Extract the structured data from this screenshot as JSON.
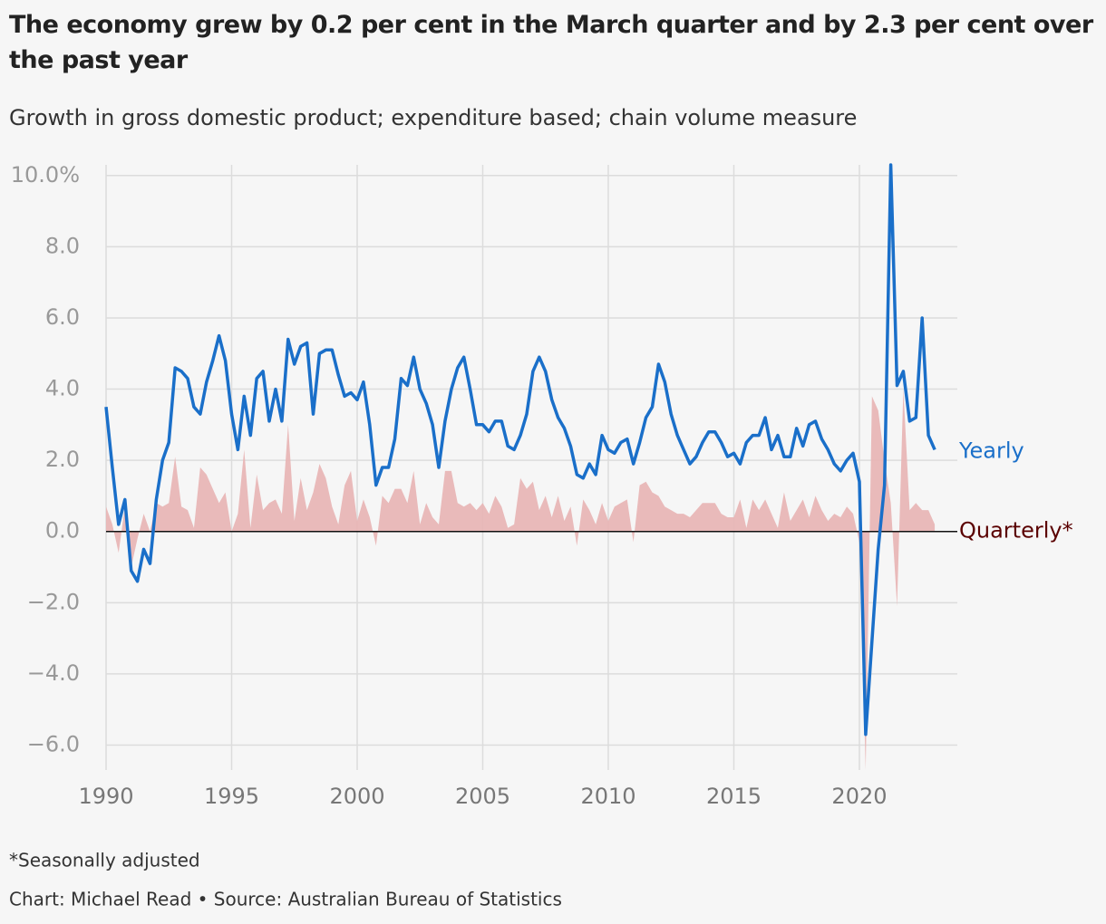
{
  "chart_data": {
    "type": "line-area",
    "title": "The economy grew by 0.2 per cent in the March quarter and by 2.3 per cent over the past year",
    "subtitle": "Growth in gross domestic product; expenditure based; chain volume measure",
    "footnote": "*Seasonally adjusted",
    "source": "Chart: Michael Read • Source: Australian Bureau of Statistics",
    "x": [
      1990,
      1990.25,
      1990.5,
      1990.75,
      1991,
      1991.25,
      1991.5,
      1991.75,
      1992,
      1992.25,
      1992.5,
      1992.75,
      1993,
      1993.25,
      1993.5,
      1993.75,
      1994,
      1994.25,
      1994.5,
      1994.75,
      1995,
      1995.25,
      1995.5,
      1995.75,
      1996,
      1996.25,
      1996.5,
      1996.75,
      1997,
      1997.25,
      1997.5,
      1997.75,
      1998,
      1998.25,
      1998.5,
      1998.75,
      1999,
      1999.25,
      1999.5,
      1999.75,
      2000,
      2000.25,
      2000.5,
      2000.75,
      2001,
      2001.25,
      2001.5,
      2001.75,
      2002,
      2002.25,
      2002.5,
      2002.75,
      2003,
      2003.25,
      2003.5,
      2003.75,
      2004,
      2004.25,
      2004.5,
      2004.75,
      2005,
      2005.25,
      2005.5,
      2005.75,
      2006,
      2006.25,
      2006.5,
      2006.75,
      2007,
      2007.25,
      2007.5,
      2007.75,
      2008,
      2008.25,
      2008.5,
      2008.75,
      2009,
      2009.25,
      2009.5,
      2009.75,
      2010,
      2010.25,
      2010.5,
      2010.75,
      2011,
      2011.25,
      2011.5,
      2011.75,
      2012,
      2012.25,
      2012.5,
      2012.75,
      2013,
      2013.25,
      2013.5,
      2013.75,
      2014,
      2014.25,
      2014.5,
      2014.75,
      2015,
      2015.25,
      2015.5,
      2015.75,
      2016,
      2016.25,
      2016.5,
      2016.75,
      2017,
      2017.25,
      2017.5,
      2017.75,
      2018,
      2018.25,
      2018.5,
      2018.75,
      2019,
      2019.25,
      2019.5,
      2019.75,
      2020,
      2020.25,
      2020.5,
      2020.75,
      2021,
      2021.25,
      2021.5,
      2021.75,
      2022,
      2022.25,
      2022.5,
      2022.75,
      2023
    ],
    "series": [
      {
        "name": "Yearly",
        "color": "#1a6fc9",
        "values": [
          3.5,
          1.8,
          0.2,
          0.9,
          -1.1,
          -1.4,
          -0.5,
          -0.9,
          0.9,
          2.0,
          2.5,
          4.6,
          4.5,
          4.3,
          3.5,
          3.3,
          4.2,
          4.8,
          5.5,
          4.8,
          3.3,
          2.3,
          3.8,
          2.7,
          4.3,
          4.5,
          3.1,
          4.0,
          3.1,
          5.4,
          4.7,
          5.2,
          5.3,
          3.3,
          5.0,
          5.1,
          5.1,
          4.4,
          3.8,
          3.9,
          3.7,
          4.2,
          3.0,
          1.3,
          1.8,
          1.8,
          2.6,
          4.3,
          4.1,
          4.9,
          4.0,
          3.6,
          3.0,
          1.8,
          3.1,
          4.0,
          4.6,
          4.9,
          4.0,
          3.0,
          3.0,
          2.8,
          3.1,
          3.1,
          2.4,
          2.3,
          2.7,
          3.3,
          4.5,
          4.9,
          4.5,
          3.7,
          3.2,
          2.9,
          2.4,
          1.6,
          1.5,
          1.9,
          1.6,
          2.7,
          2.3,
          2.2,
          2.5,
          2.6,
          1.9,
          2.5,
          3.2,
          3.5,
          4.7,
          4.2,
          3.3,
          2.7,
          2.3,
          1.9,
          2.1,
          2.5,
          2.8,
          2.8,
          2.5,
          2.1,
          2.2,
          1.9,
          2.5,
          2.7,
          2.7,
          3.2,
          2.3,
          2.7,
          2.1,
          2.1,
          2.9,
          2.4,
          3.0,
          3.1,
          2.6,
          2.3,
          1.9,
          1.7,
          2.0,
          2.2,
          1.4,
          -5.7,
          -3.1,
          -0.5,
          1.3,
          10.3,
          4.1,
          4.5,
          3.1,
          3.2,
          6.0,
          2.7,
          2.3
        ]
      },
      {
        "name": "Quarterly*",
        "color": "#e8b4b4",
        "label_color": "#5a0000",
        "values": [
          0.7,
          0.2,
          -0.6,
          0.7,
          -1.0,
          -0.2,
          0.5,
          0.0,
          0.8,
          0.7,
          0.8,
          2.1,
          0.7,
          0.6,
          0.1,
          1.8,
          1.6,
          1.2,
          0.8,
          1.1,
          0.0,
          0.5,
          2.3,
          0.1,
          1.6,
          0.6,
          0.8,
          0.9,
          0.5,
          3.0,
          0.3,
          1.5,
          0.6,
          1.1,
          1.9,
          1.5,
          0.7,
          0.2,
          1.3,
          1.7,
          0.3,
          0.9,
          0.4,
          -0.4,
          1.0,
          0.8,
          1.2,
          1.2,
          0.8,
          1.7,
          0.2,
          0.8,
          0.4,
          0.2,
          1.7,
          1.7,
          0.8,
          0.7,
          0.8,
          0.6,
          0.8,
          0.5,
          1.0,
          0.7,
          0.1,
          0.2,
          1.5,
          1.2,
          1.4,
          0.6,
          1.0,
          0.4,
          1.0,
          0.3,
          0.7,
          -0.4,
          0.9,
          0.6,
          0.2,
          0.8,
          0.3,
          0.7,
          0.8,
          0.9,
          -0.3,
          1.3,
          1.4,
          1.1,
          1.0,
          0.7,
          0.6,
          0.5,
          0.5,
          0.4,
          0.6,
          0.8,
          0.8,
          0.8,
          0.5,
          0.4,
          0.4,
          0.9,
          0.1,
          0.9,
          0.6,
          0.9,
          0.5,
          0.1,
          1.1,
          0.3,
          0.6,
          0.9,
          0.4,
          1.0,
          0.6,
          0.3,
          0.5,
          0.4,
          0.7,
          0.5,
          -0.3,
          -6.7,
          3.8,
          3.4,
          2.0,
          0.8,
          -2.1,
          4.0,
          0.6,
          0.8,
          0.6,
          0.6,
          0.2
        ]
      }
    ],
    "xlim": [
      1990,
      2023.9
    ],
    "xticks": [
      1990,
      1995,
      2000,
      2005,
      2010,
      2015,
      2020
    ],
    "ylim": [
      -6.7,
      10.3
    ],
    "yticks": [
      {
        "value": -6,
        "label": "−6.0"
      },
      {
        "value": -4,
        "label": "−4.0"
      },
      {
        "value": -2,
        "label": "−2.0"
      },
      {
        "value": 0,
        "label": "0.0"
      },
      {
        "value": 2,
        "label": "2.0"
      },
      {
        "value": 4,
        "label": "4.0"
      },
      {
        "value": 6,
        "label": "6.0"
      },
      {
        "value": 8,
        "label": "8.0"
      },
      {
        "value": 10,
        "label": "10.0%"
      }
    ],
    "grid": true
  }
}
